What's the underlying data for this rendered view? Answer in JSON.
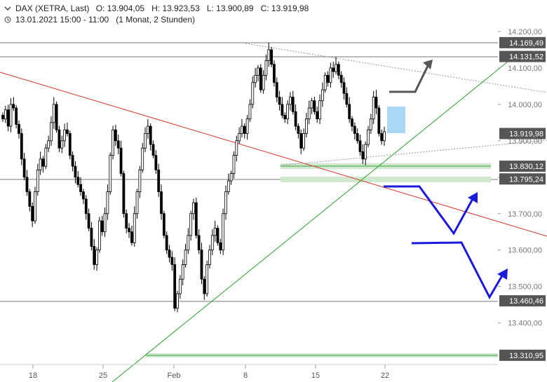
{
  "header": {
    "symbol": "DAX (XETRA, Last)",
    "open": "O: 13.904,05",
    "high": "H: 13.923,53",
    "low": "L: 13.900,89",
    "close": "C: 13.919,98",
    "period": "13.01.2021 15:00 - 11:00",
    "interval": "(1 Monat, 2 Stunden)"
  },
  "colors": {
    "candle": "#000000",
    "resistance_line": "#d9463b",
    "support_line": "#3aa63a",
    "scenario_up": "#555555",
    "scenario_down": "#1a1adc",
    "highlight_box": "#a8d8f5",
    "support_zone": "#cfe8cf",
    "price_label_bg": "#555555"
  },
  "chart_data": {
    "type": "candlestick",
    "xlabel": "",
    "ylabel": "",
    "ylim": [
      13280,
      14220
    ],
    "x_ticks": [
      "18",
      "25",
      "Feb",
      "8",
      "15",
      "22"
    ],
    "y_ticks": [
      "14.200,00",
      "14.100,00",
      "14.000,00",
      "13.900,00",
      "13.800,00",
      "13.700,00",
      "13.600,00",
      "13.500,00",
      "13.400,00"
    ],
    "y_tick_values": [
      14200,
      14100,
      14000,
      13900,
      13800,
      13700,
      13600,
      13500,
      13400
    ],
    "level_labels": [
      "14.169,49",
      "14.131,52",
      "13.830,12",
      "13.795,24",
      "13.460,46",
      "13.310,95"
    ],
    "levels": [
      14169.49,
      14131.52,
      13830.12,
      13795.24,
      13460.46,
      13310.95
    ],
    "current_price": "13.919,98",
    "current_price_value": 13919.98,
    "closes": [
      13960,
      13985,
      13940,
      14000,
      13990,
      13945,
      13920,
      13850,
      13800,
      13760,
      13720,
      13680,
      13760,
      13820,
      13850,
      13830,
      13880,
      13900,
      13950,
      14000,
      13930,
      13880,
      13900,
      13930,
      13920,
      13860,
      13830,
      13800,
      13780,
      13760,
      13740,
      13700,
      13660,
      13610,
      13560,
      13600,
      13680,
      13650,
      13700,
      13760,
      13860,
      13930,
      13900,
      13880,
      13810,
      13700,
      13660,
      13650,
      13620,
      13700,
      13760,
      13820,
      13880,
      13920,
      13940,
      13890,
      13860,
      13820,
      13760,
      13700,
      13640,
      13600,
      13580,
      13560,
      13440,
      13480,
      13520,
      13560,
      13600,
      13640,
      13700,
      13730,
      13640,
      13600,
      13520,
      13480,
      13560,
      13600,
      13640,
      13660,
      13620,
      13600,
      13700,
      13760,
      13790,
      13810,
      13860,
      13900,
      13920,
      13940,
      13920,
      13960,
      14000,
      14060,
      14080,
      14100,
      14040,
      14080,
      14120,
      14150,
      14110,
      14060,
      14020,
      14000,
      13970,
      13960,
      14000,
      14020,
      13980,
      13940,
      13920,
      13880,
      13920,
      13960,
      13990,
      14010,
      13980,
      13960,
      14010,
      14040,
      14080,
      14060,
      14100,
      14090,
      14110,
      14080,
      14060,
      14030,
      14000,
      13960,
      13940,
      13920,
      13900,
      13870,
      13850,
      13890,
      13930,
      13960,
      14020,
      13990,
      13920,
      13900,
      13925
    ],
    "annotations": {
      "up_arrow": "scenario up above 14.131,52",
      "down_scenario_1": "dip to ~13.710 then rebound",
      "down_scenario_2": "dip to ~13.465 then rebound"
    }
  }
}
